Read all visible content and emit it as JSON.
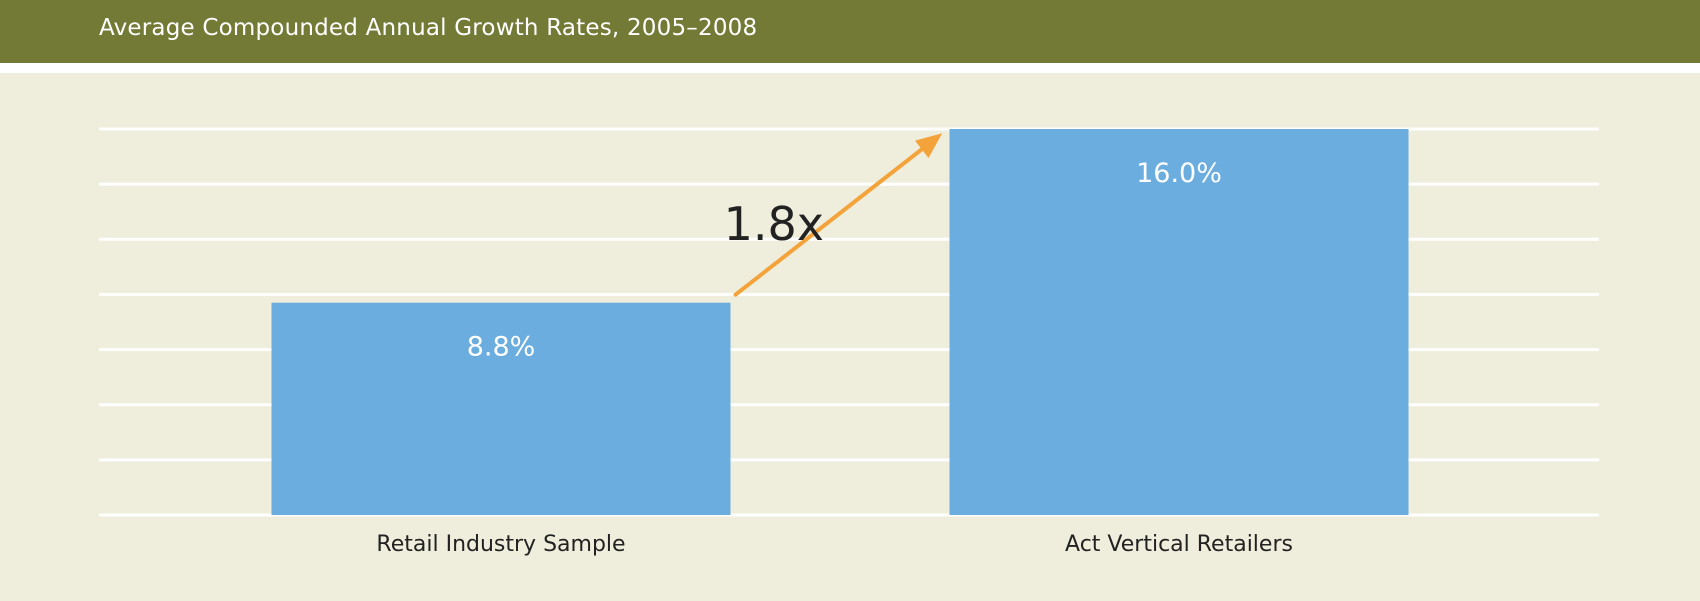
{
  "header": {
    "title": "Average Compounded Annual Growth Rates, 2005–2008"
  },
  "colors": {
    "header_bg": "#737a36",
    "plot_bg": "#efeddb",
    "gridline": "#ffffff",
    "bar": "#6caddf",
    "bar_label": "#ffffff",
    "arrow": "#f3a33a",
    "annotation_text": "#222222",
    "axis_text": "#222222"
  },
  "chart_data": {
    "type": "bar",
    "title": "Average Compounded Annual Growth Rates, 2005–2008",
    "xlabel": "",
    "ylabel": "",
    "categories": [
      "Retail Industry Sample",
      "Act Vertical Retailers"
    ],
    "values": [
      8.8,
      16.0
    ],
    "value_labels": [
      "8.8%",
      "16.0%"
    ],
    "ylim": [
      0,
      16
    ],
    "grid": true,
    "legend": "none",
    "annotation": {
      "text": "1.8x",
      "arrow": "from first bar top toward second bar top"
    }
  }
}
